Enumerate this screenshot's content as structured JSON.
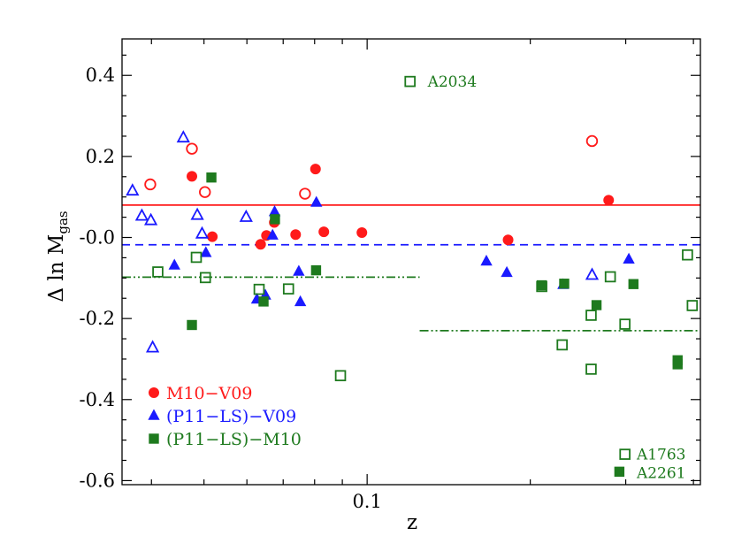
{
  "chart_data": {
    "type": "scatter",
    "xlabel": "z",
    "ylabel_main": "Δ ln M",
    "ylabel_sub": "gas",
    "xscale": "log",
    "xlim": [
      0.0353,
      0.412
    ],
    "ylim": [
      -0.61,
      0.49
    ],
    "yticks": [
      {
        "value": 0.4,
        "label": "0.4"
      },
      {
        "value": 0.2,
        "label": "0.2"
      },
      {
        "value": 0.0,
        "label": "-0.0"
      },
      {
        "value": -0.2,
        "label": "-0.2"
      },
      {
        "value": -0.4,
        "label": "-0.4"
      },
      {
        "value": -0.6,
        "label": "-0.6"
      }
    ],
    "xticks": [
      {
        "value": 0.1,
        "label": "0.1"
      }
    ],
    "colors": {
      "red": "#ff1a1a",
      "blue": "#1a1aff",
      "green": "#1e7a1e"
    },
    "series": [
      {
        "name": "M10−V09",
        "marker": "circle",
        "color": "#ff1a1a",
        "filled": [
          [
            0.0475,
            0.151
          ],
          [
            0.0518,
            0.002
          ],
          [
            0.0636,
            -0.017
          ],
          [
            0.0652,
            0.005
          ],
          [
            0.0674,
            0.037
          ],
          [
            0.0738,
            0.007
          ],
          [
            0.0803,
            0.169
          ],
          [
            0.0832,
            0.014
          ],
          [
            0.0978,
            0.012
          ],
          [
            0.182,
            -0.006
          ],
          [
            0.279,
            0.092
          ]
        ],
        "open": [
          [
            0.0398,
            0.131
          ],
          [
            0.0475,
            0.219
          ],
          [
            0.0502,
            0.112
          ],
          [
            0.0768,
            0.108
          ],
          [
            0.26,
            0.238
          ]
        ]
      },
      {
        "name": "(P11−LS)−V09",
        "marker": "triangle",
        "color": "#1a1aff",
        "filled": [
          [
            0.0441,
            -0.069
          ],
          [
            0.0504,
            -0.038
          ],
          [
            0.0626,
            -0.153
          ],
          [
            0.0649,
            -0.143
          ],
          [
            0.0669,
            0.005
          ],
          [
            0.0675,
            0.063
          ],
          [
            0.0748,
            -0.084
          ],
          [
            0.0753,
            -0.159
          ],
          [
            0.0806,
            0.086
          ],
          [
            0.166,
            -0.059
          ],
          [
            0.181,
            -0.087
          ],
          [
            0.23,
            -0.117
          ],
          [
            0.304,
            -0.054
          ]
        ],
        "open": [
          [
            0.0369,
            0.115
          ],
          [
            0.0384,
            0.053
          ],
          [
            0.0399,
            0.042
          ],
          [
            0.0402,
            -0.272
          ],
          [
            0.0458,
            0.246
          ],
          [
            0.0486,
            0.055
          ],
          [
            0.0496,
            0.009
          ],
          [
            0.0598,
            0.05
          ],
          [
            0.26,
            -0.093
          ]
        ]
      },
      {
        "name": "(P11−LS)−M10",
        "marker": "square",
        "color": "#1e7a1e",
        "filled": [
          [
            0.0475,
            -0.216
          ],
          [
            0.0516,
            0.148
          ],
          [
            0.0644,
            -0.158
          ],
          [
            0.0676,
            0.045
          ],
          [
            0.0805,
            -0.081
          ],
          [
            0.21,
            -0.118
          ],
          [
            0.231,
            -0.114
          ],
          [
            0.265,
            -0.167
          ],
          [
            0.31,
            -0.115
          ],
          [
            0.374,
            -0.303
          ],
          [
            0.374,
            -0.313
          ],
          [
            0.292,
            -0.578
          ]
        ],
        "open": [
          [
            0.0411,
            -0.085
          ],
          [
            0.0484,
            -0.049
          ],
          [
            0.0503,
            -0.099
          ],
          [
            0.0632,
            -0.128
          ],
          [
            0.0716,
            -0.127
          ],
          [
            0.0893,
            -0.341
          ],
          [
            0.12,
            0.385
          ],
          [
            0.21,
            -0.121
          ],
          [
            0.229,
            -0.265
          ],
          [
            0.259,
            -0.325
          ],
          [
            0.259,
            -0.192
          ],
          [
            0.281,
            -0.097
          ],
          [
            0.299,
            -0.214
          ],
          [
            0.39,
            -0.043
          ],
          [
            0.398,
            -0.168
          ],
          [
            0.299,
            -0.535
          ]
        ]
      }
    ],
    "reference_lines": [
      {
        "color": "#ff1a1a",
        "style": "solid",
        "y": 0.08,
        "x_from": 0.0353,
        "x_to": 0.412
      },
      {
        "color": "#1a1aff",
        "style": "dashed",
        "y": -0.018,
        "x_from": 0.0353,
        "x_to": 0.412
      },
      {
        "color": "#1e7a1e",
        "style": "dash-dot-dot",
        "y": -0.098,
        "x_from": 0.0353,
        "x_to": 0.125
      },
      {
        "color": "#1e7a1e",
        "style": "dash-dot-dot",
        "y": -0.23,
        "x_from": 0.125,
        "x_to": 0.412
      }
    ],
    "annotations": [
      {
        "text": "A2034",
        "x": 0.1255,
        "y": 0.385
      },
      {
        "text": "A1763",
        "x": 0.305,
        "y": -0.535
      },
      {
        "text": "A2261",
        "x": 0.305,
        "y": -0.58
      }
    ],
    "legend": {
      "placement": "bottom-left",
      "entries": [
        {
          "label": "M10−V09",
          "marker": "circle",
          "color": "#ff1a1a"
        },
        {
          "label": "(P11−LS)−V09",
          "marker": "triangle",
          "color": "#1a1aff"
        },
        {
          "label": "(P11−LS)−M10",
          "marker": "square",
          "color": "#1e7a1e"
        }
      ]
    }
  }
}
